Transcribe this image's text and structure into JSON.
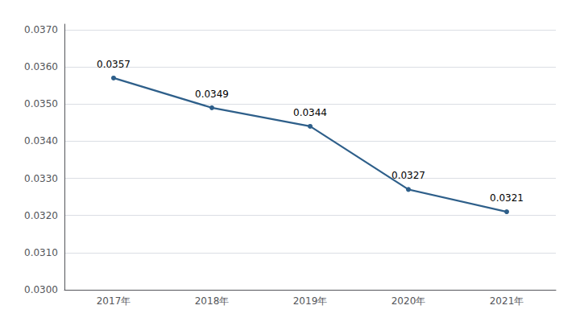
{
  "chart_data": {
    "type": "line",
    "categories": [
      "2017年",
      "2018年",
      "2019年",
      "2020年",
      "2021年"
    ],
    "values": [
      0.0357,
      0.0349,
      0.0344,
      0.0327,
      0.0321
    ],
    "color": "#2E5F8A",
    "ylim": [
      0.03,
      0.03715
    ],
    "yticks": [
      {
        "value": 0.03,
        "label": "0.0300"
      },
      {
        "value": 0.031,
        "label": "0.0310"
      },
      {
        "value": 0.032,
        "label": "0.0320"
      },
      {
        "value": 0.033,
        "label": "0.0330"
      },
      {
        "value": 0.034,
        "label": "0.0340"
      },
      {
        "value": 0.035,
        "label": "0.0350"
      },
      {
        "value": 0.036,
        "label": "0.0360"
      },
      {
        "value": 0.037,
        "label": "0.0370"
      }
    ],
    "grid": true,
    "data_labels": true
  }
}
